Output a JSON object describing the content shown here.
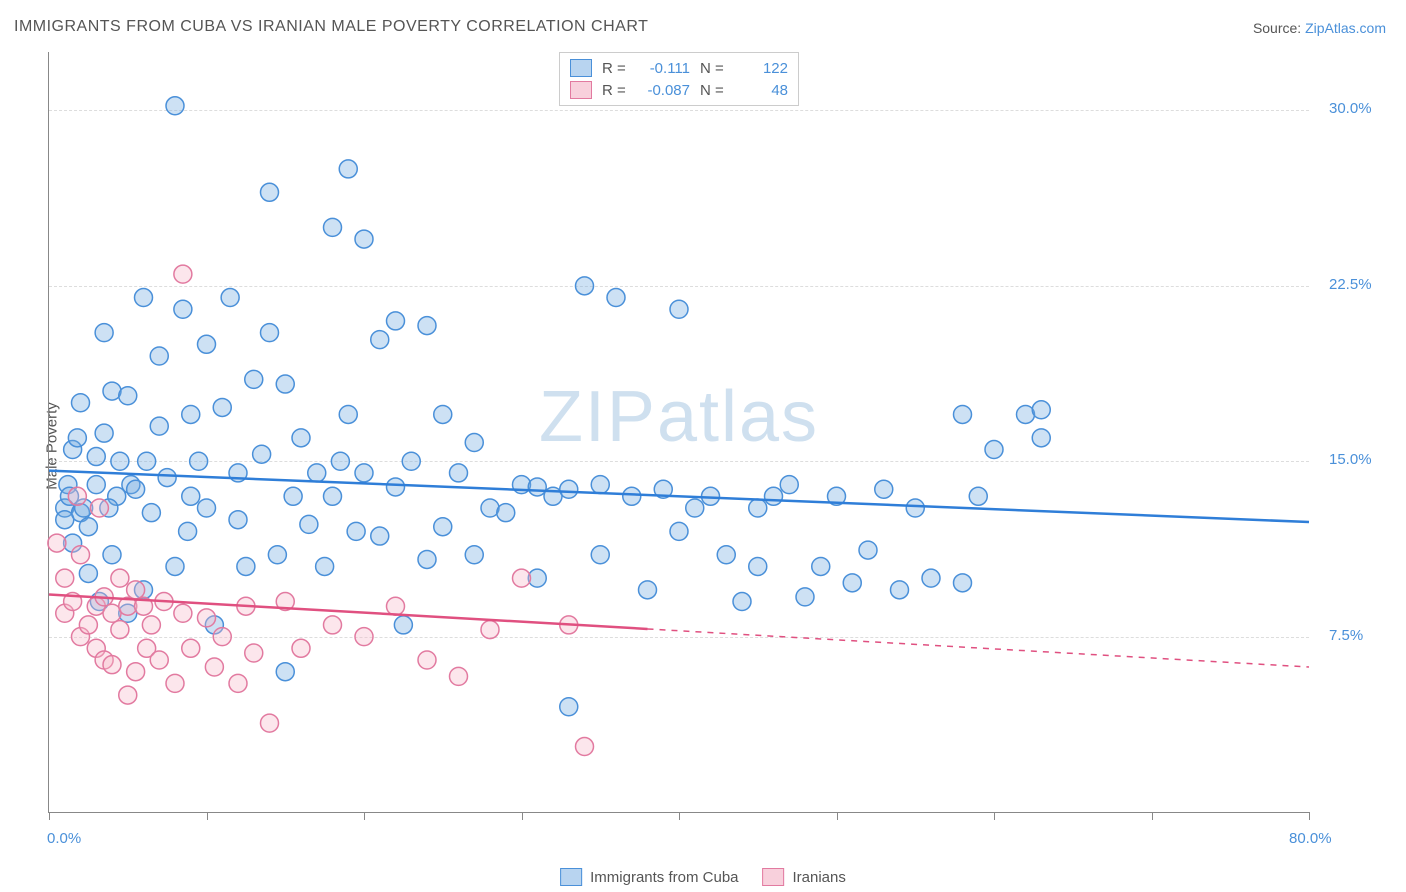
{
  "title": "IMMIGRANTS FROM CUBA VS IRANIAN MALE POVERTY CORRELATION CHART",
  "source_label": "Source:",
  "source_name": "ZipAtlas.com",
  "ylabel": "Male Poverty",
  "watermark_bold": "ZIP",
  "watermark_light": "atlas",
  "chart": {
    "type": "scatter",
    "xlim": [
      0,
      80
    ],
    "ylim": [
      0,
      32.5
    ],
    "x_ticks": [
      0,
      10,
      20,
      30,
      40,
      50,
      60,
      70,
      80
    ],
    "x_tick_labels": {
      "0": "0.0%",
      "80": "80.0%"
    },
    "y_grid": [
      7.5,
      15.0,
      22.5,
      30.0
    ],
    "y_grid_labels": [
      "7.5%",
      "15.0%",
      "22.5%",
      "30.0%"
    ],
    "background_color": "#ffffff",
    "grid_color": "#dddddd",
    "axis_color": "#888888",
    "marker_radius": 9,
    "marker_stroke_width": 1.5,
    "marker_fill_opacity": 0.35,
    "line_width": 2.5
  },
  "series": [
    {
      "name": "Immigrants from Cuba",
      "color": "#6fa8e0",
      "stroke": "#4a90d9",
      "line_color": "#2f7ed8",
      "R": "-0.111",
      "N": "122",
      "trend": {
        "x1": 0,
        "y1": 14.6,
        "x2": 80,
        "y2": 12.4,
        "solid_until": 80
      },
      "points": [
        [
          1,
          13.0
        ],
        [
          1,
          12.5
        ],
        [
          1.2,
          14.0
        ],
        [
          1.3,
          13.5
        ],
        [
          1.5,
          15.5
        ],
        [
          1.5,
          11.5
        ],
        [
          1.8,
          16.0
        ],
        [
          2,
          12.8
        ],
        [
          2,
          17.5
        ],
        [
          2.2,
          13.0
        ],
        [
          2.5,
          10.2
        ],
        [
          2.5,
          12.2
        ],
        [
          3,
          15.2
        ],
        [
          3,
          14.0
        ],
        [
          3.2,
          9.0
        ],
        [
          3.5,
          16.2
        ],
        [
          3.5,
          20.5
        ],
        [
          4,
          18.0
        ],
        [
          4,
          11.0
        ],
        [
          4.3,
          13.5
        ],
        [
          4.5,
          15.0
        ],
        [
          5,
          8.5
        ],
        [
          5,
          17.8
        ],
        [
          5.2,
          14.0
        ],
        [
          5.5,
          13.8
        ],
        [
          6,
          22.0
        ],
        [
          6,
          9.5
        ],
        [
          6.5,
          12.8
        ],
        [
          7,
          16.5
        ],
        [
          7,
          19.5
        ],
        [
          7.5,
          14.3
        ],
        [
          8,
          30.2
        ],
        [
          8,
          10.5
        ],
        [
          8.5,
          21.5
        ],
        [
          9,
          13.5
        ],
        [
          9,
          17.0
        ],
        [
          9.5,
          15.0
        ],
        [
          10,
          20.0
        ],
        [
          10,
          13.0
        ],
        [
          10.5,
          8.0
        ],
        [
          11,
          17.3
        ],
        [
          11.5,
          22.0
        ],
        [
          12,
          14.5
        ],
        [
          12,
          12.5
        ],
        [
          12.5,
          10.5
        ],
        [
          13,
          18.5
        ],
        [
          13.5,
          15.3
        ],
        [
          14,
          26.5
        ],
        [
          14,
          20.5
        ],
        [
          14.5,
          11.0
        ],
        [
          15,
          18.3
        ],
        [
          15,
          6.0
        ],
        [
          15.5,
          13.5
        ],
        [
          16,
          16.0
        ],
        [
          16.5,
          12.3
        ],
        [
          17,
          14.5
        ],
        [
          17.5,
          10.5
        ],
        [
          18,
          25.0
        ],
        [
          18,
          13.5
        ],
        [
          18.5,
          15.0
        ],
        [
          19,
          27.5
        ],
        [
          19,
          17.0
        ],
        [
          19.5,
          12.0
        ],
        [
          20,
          24.5
        ],
        [
          20,
          14.5
        ],
        [
          21,
          11.8
        ],
        [
          21,
          20.2
        ],
        [
          22,
          13.9
        ],
        [
          22,
          21.0
        ],
        [
          22.5,
          8.0
        ],
        [
          23,
          15.0
        ],
        [
          24,
          10.8
        ],
        [
          24,
          20.8
        ],
        [
          25,
          12.2
        ],
        [
          25,
          17.0
        ],
        [
          26,
          14.5
        ],
        [
          27,
          11.0
        ],
        [
          27,
          15.8
        ],
        [
          28,
          13.0
        ],
        [
          29,
          12.8
        ],
        [
          30,
          14.0
        ],
        [
          31,
          13.9
        ],
        [
          31,
          10.0
        ],
        [
          32,
          13.5
        ],
        [
          33,
          4.5
        ],
        [
          33,
          13.8
        ],
        [
          34,
          22.5
        ],
        [
          35,
          11.0
        ],
        [
          35,
          14.0
        ],
        [
          36,
          22.0
        ],
        [
          37,
          13.5
        ],
        [
          38,
          9.5
        ],
        [
          39,
          13.8
        ],
        [
          40,
          21.5
        ],
        [
          40,
          12.0
        ],
        [
          42,
          13.5
        ],
        [
          43,
          11.0
        ],
        [
          44,
          9.0
        ],
        [
          45,
          10.5
        ],
        [
          45,
          13.0
        ],
        [
          47,
          14.0
        ],
        [
          48,
          9.2
        ],
        [
          49,
          10.5
        ],
        [
          50,
          13.5
        ],
        [
          51,
          9.8
        ],
        [
          52,
          11.2
        ],
        [
          53,
          13.8
        ],
        [
          54,
          9.5
        ],
        [
          55,
          13.0
        ],
        [
          56,
          10.0
        ],
        [
          58,
          9.8
        ],
        [
          59,
          13.5
        ],
        [
          60,
          15.5
        ],
        [
          62,
          17.0
        ],
        [
          63,
          16.0
        ],
        [
          63,
          17.2
        ],
        [
          58,
          17.0
        ],
        [
          41,
          13.0
        ],
        [
          46,
          13.5
        ],
        [
          3.8,
          13.0
        ],
        [
          6.2,
          15.0
        ],
        [
          8.8,
          12.0
        ]
      ]
    },
    {
      "name": "Iranians",
      "color": "#f5b8c8",
      "stroke": "#e27aa0",
      "line_color": "#e05080",
      "R": "-0.087",
      "N": "48",
      "trend": {
        "x1": 0,
        "y1": 9.3,
        "x2": 80,
        "y2": 6.2,
        "solid_until": 38
      },
      "points": [
        [
          0.5,
          11.5
        ],
        [
          1,
          8.5
        ],
        [
          1,
          10.0
        ],
        [
          1.5,
          9.0
        ],
        [
          1.8,
          13.5
        ],
        [
          2,
          7.5
        ],
        [
          2,
          11.0
        ],
        [
          2.5,
          8.0
        ],
        [
          3,
          8.8
        ],
        [
          3,
          7.0
        ],
        [
          3.2,
          13.0
        ],
        [
          3.5,
          6.5
        ],
        [
          3.5,
          9.2
        ],
        [
          4,
          8.5
        ],
        [
          4,
          6.3
        ],
        [
          4.5,
          10.0
        ],
        [
          4.5,
          7.8
        ],
        [
          5,
          8.8
        ],
        [
          5,
          5.0
        ],
        [
          5.5,
          6.0
        ],
        [
          5.5,
          9.5
        ],
        [
          6,
          8.8
        ],
        [
          6.2,
          7.0
        ],
        [
          6.5,
          8.0
        ],
        [
          7,
          6.5
        ],
        [
          7.3,
          9.0
        ],
        [
          8,
          5.5
        ],
        [
          8.5,
          8.5
        ],
        [
          8.5,
          23.0
        ],
        [
          9,
          7.0
        ],
        [
          10,
          8.3
        ],
        [
          10.5,
          6.2
        ],
        [
          11,
          7.5
        ],
        [
          12,
          5.5
        ],
        [
          12.5,
          8.8
        ],
        [
          13,
          6.8
        ],
        [
          14,
          3.8
        ],
        [
          15,
          9.0
        ],
        [
          16,
          7.0
        ],
        [
          18,
          8.0
        ],
        [
          20,
          7.5
        ],
        [
          22,
          8.8
        ],
        [
          24,
          6.5
        ],
        [
          26,
          5.8
        ],
        [
          28,
          7.8
        ],
        [
          30,
          10.0
        ],
        [
          33,
          8.0
        ],
        [
          34,
          2.8
        ]
      ]
    }
  ],
  "legend_top": {
    "R_label": "R =",
    "N_label": "N ="
  },
  "legend_bottom": [
    {
      "label": "Immigrants from Cuba",
      "fill": "#b8d4f0",
      "stroke": "#4a90d9"
    },
    {
      "label": "Iranians",
      "fill": "#f8d0dc",
      "stroke": "#e27aa0"
    }
  ]
}
